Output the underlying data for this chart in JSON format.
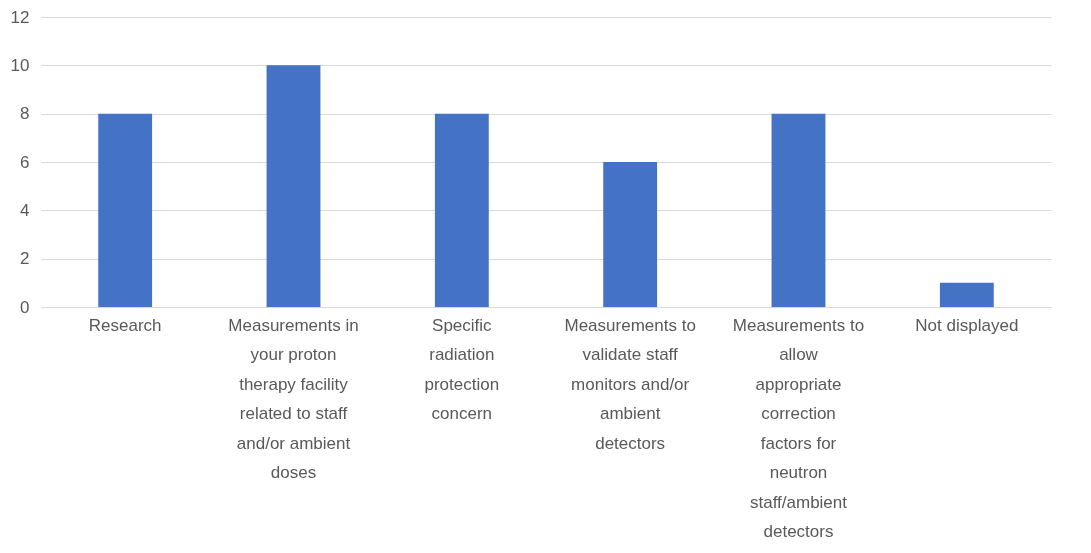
{
  "chart_data": {
    "type": "bar",
    "categories": [
      "Research",
      "Measurements in your proton therapy facility related to staff and/or ambient doses",
      "Specific radiation protection concern",
      "Measurements to validate staff monitors and/or ambient detectors",
      "Measurements to allow appropriate correction factors for neutron staff/ambient detectors",
      "Not displayed"
    ],
    "values": [
      8,
      10,
      8,
      6,
      8,
      1
    ],
    "color": "#4472c4",
    "ylim": [
      0,
      12
    ],
    "yticks": [
      0,
      2,
      4,
      6,
      8,
      10,
      12
    ],
    "grid": "y"
  }
}
